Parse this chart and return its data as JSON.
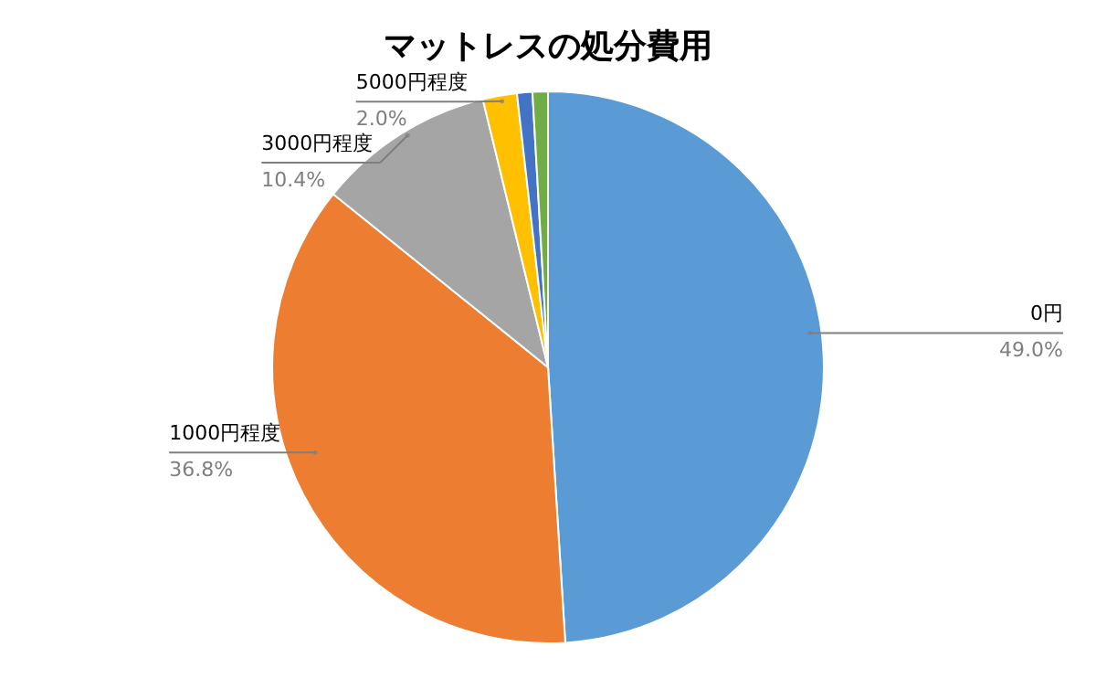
{
  "chart_data": {
    "type": "pie",
    "title": "マットレスの処分費用",
    "categories": [
      "0円",
      "1000円程度",
      "3000円程度",
      "5000円程度",
      null,
      null
    ],
    "values": [
      49.0,
      36.8,
      10.4,
      2.0,
      0.9,
      0.9
    ],
    "colors": [
      "#5b9bd5",
      "#ed7d31",
      "#a5a5a5",
      "#ffc000",
      "#4472c4",
      "#70ad47"
    ],
    "value_labels": [
      "49.0%",
      "36.8%",
      "10.4%",
      "2.0%",
      null,
      null
    ]
  }
}
